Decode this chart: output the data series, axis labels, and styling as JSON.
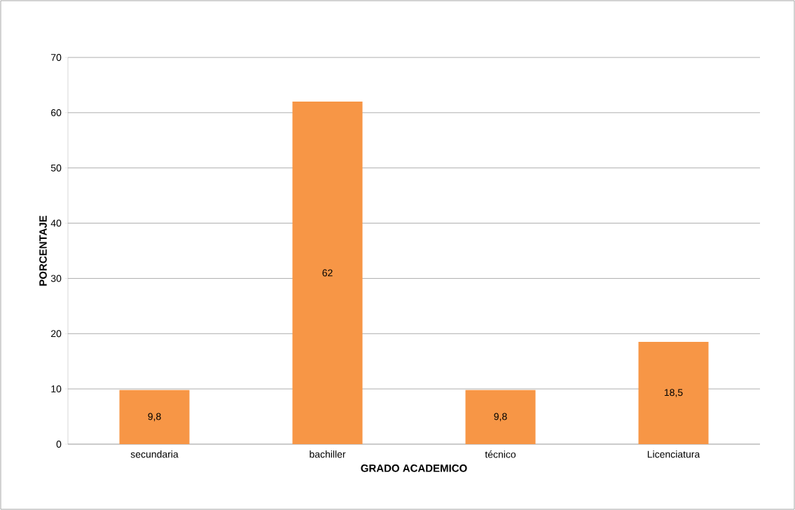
{
  "chart_data": {
    "type": "bar",
    "xlabel": "GRADO ACADEMICO",
    "ylabel": "PORCENTAJE",
    "categories": [
      "secundaria",
      "bachiller",
      "técnico",
      "Licenciatura"
    ],
    "values": [
      9.8,
      62,
      9.8,
      18.5
    ],
    "value_labels": [
      "9,8",
      "62",
      "9,8",
      "18,5"
    ],
    "color": "#f79646",
    "ylim": [
      0,
      70
    ],
    "yticks": [
      0,
      10,
      20,
      30,
      40,
      50,
      60,
      70
    ],
    "grid": "y"
  }
}
